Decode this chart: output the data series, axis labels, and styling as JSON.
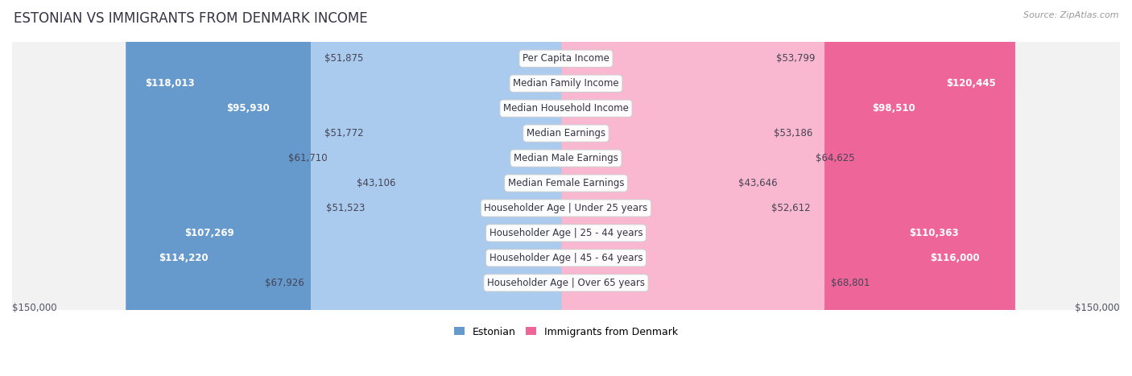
{
  "title": "ESTONIAN VS IMMIGRANTS FROM DENMARK INCOME",
  "source": "Source: ZipAtlas.com",
  "categories": [
    "Per Capita Income",
    "Median Family Income",
    "Median Household Income",
    "Median Earnings",
    "Median Male Earnings",
    "Median Female Earnings",
    "Householder Age | Under 25 years",
    "Householder Age | 25 - 44 years",
    "Householder Age | 45 - 64 years",
    "Householder Age | Over 65 years"
  ],
  "estonian_values": [
    51875,
    118013,
    95930,
    51772,
    61710,
    43106,
    51523,
    107269,
    114220,
    67926
  ],
  "denmark_values": [
    53799,
    120445,
    98510,
    53186,
    64625,
    43646,
    52612,
    110363,
    116000,
    68801
  ],
  "estonian_color_light": "#AACBEE",
  "estonian_color_dark": "#6699CC",
  "denmark_color_light": "#F9B8CF",
  "denmark_color_dark": "#EE6699",
  "white_label_threshold": 80000,
  "x_max": 150000,
  "x_tick_label_left": "$150,000",
  "x_tick_label_right": "$150,000",
  "legend_estonian": "Estonian",
  "legend_denmark": "Immigrants from Denmark",
  "row_bg_color": "#F2F2F2",
  "bar_label_fontsize": 8.5,
  "category_fontsize": 8.5,
  "title_fontsize": 12,
  "title_color": "#333344"
}
